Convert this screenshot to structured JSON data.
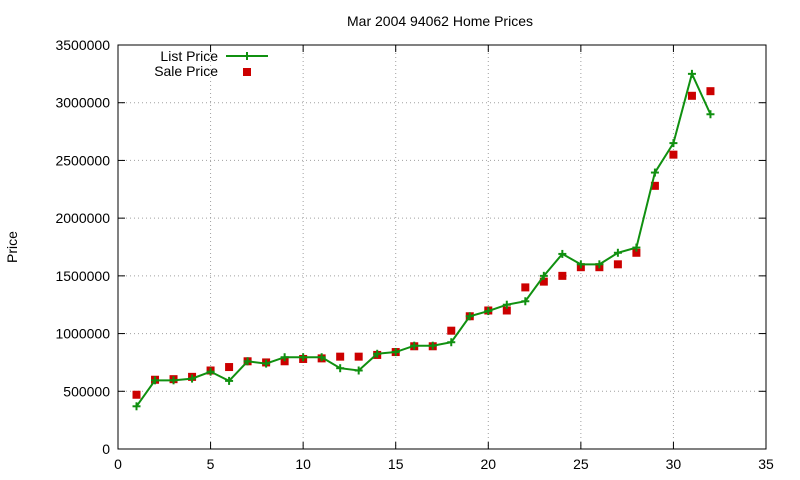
{
  "chart_data": {
    "type": "line",
    "title": "Mar 2004 94062 Home Prices",
    "xlabel": "",
    "ylabel": "Price",
    "xlim": [
      0,
      35
    ],
    "ylim": [
      0,
      3500000
    ],
    "x_ticks": [
      0,
      5,
      10,
      15,
      20,
      25,
      30,
      35
    ],
    "x_tick_labels": [
      "0",
      "5",
      "10",
      "15",
      "20",
      "25",
      "30",
      "35"
    ],
    "y_ticks": [
      0,
      500000,
      1000000,
      1500000,
      2000000,
      2500000,
      3000000,
      3500000
    ],
    "y_tick_labels": [
      "0",
      "500000",
      "1000000",
      "1500000",
      "2000000",
      "2500000",
      "3000000",
      "3500000"
    ],
    "grid": true,
    "legend_position": "top-left",
    "series": [
      {
        "name": "List Price",
        "style": "line-with-plus-markers",
        "color": "#109010",
        "x": [
          1,
          2,
          3,
          4,
          5,
          6,
          7,
          8,
          9,
          10,
          11,
          12,
          13,
          14,
          15,
          16,
          17,
          18,
          19,
          20,
          21,
          22,
          23,
          24,
          25,
          26,
          27,
          28,
          29,
          30,
          31,
          32
        ],
        "values": [
          370000,
          595000,
          595000,
          610000,
          670000,
          590000,
          760000,
          740000,
          795000,
          795000,
          795000,
          700000,
          680000,
          825000,
          840000,
          895000,
          895000,
          925000,
          1150000,
          1195000,
          1250000,
          1280000,
          1500000,
          1690000,
          1600000,
          1600000,
          1700000,
          1745000,
          2395000,
          2650000,
          3250000,
          2900000
        ]
      },
      {
        "name": "Sale Price",
        "style": "square-markers",
        "color": "#cc0000",
        "x": [
          1,
          2,
          3,
          4,
          5,
          6,
          7,
          8,
          9,
          10,
          11,
          12,
          13,
          14,
          15,
          16,
          17,
          18,
          19,
          20,
          21,
          22,
          23,
          24,
          25,
          26,
          27,
          28,
          29,
          30,
          31,
          32
        ],
        "values": [
          470000,
          600000,
          605000,
          625000,
          680000,
          710000,
          760000,
          750000,
          760000,
          780000,
          785000,
          800000,
          800000,
          815000,
          840000,
          890000,
          890000,
          1025000,
          1150000,
          1200000,
          1200000,
          1400000,
          1450000,
          1500000,
          1575000,
          1575000,
          1600000,
          1700000,
          2280000,
          2550000,
          3060000,
          3100000
        ]
      }
    ]
  }
}
